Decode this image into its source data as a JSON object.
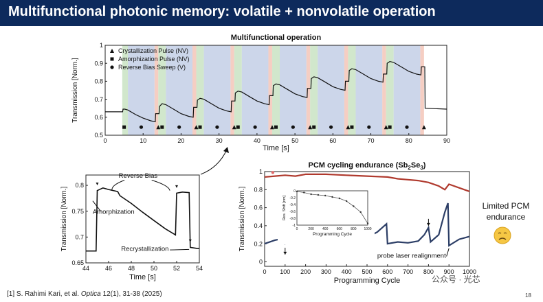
{
  "slide": {
    "title": "Multifunctional photonic memory: volatile + nonvolatile operation",
    "side_note": [
      "Limited PCM",
      "endurance"
    ],
    "side_icon": "sad-face-emoji",
    "citation_pre": "[1] S. Rahimi Kari, et al. ",
    "citation_journal": "Optica",
    "citation_post": " 12(1), 31-38 (2025)",
    "page_number": "18",
    "watermark": "公众号 · 光芯",
    "colors": {
      "title_bg": "#0d2a5c",
      "top_trace": "#b03a2e",
      "bottom_trace": "#2c3e66"
    }
  },
  "chart_data": [
    {
      "type": "line",
      "title": "Multifunctional operation",
      "xlabel": "Time [s]",
      "ylabel": "Transmission [Norm.]",
      "xlim": [
        0,
        90
      ],
      "ylim": [
        0.5,
        1.0
      ],
      "xticks": [
        "0",
        "10",
        "20",
        "30",
        "40",
        "50",
        "60",
        "70",
        "80",
        "90"
      ],
      "yticks": [
        "0.5",
        "0.6",
        "0.7",
        "0.8",
        "0.9",
        "1"
      ],
      "legend": [
        "Crystallization Pulse (NV)",
        "Amorphization Pulse (NV)",
        "Reverse Bias Sweep (V)"
      ],
      "legend_position": "top-left",
      "shaded_regions": [
        {
          "kind": "crystallization",
          "color": "#f3c6b8",
          "ranges": [
            [
              13,
              14
            ],
            [
              23,
              24
            ],
            [
              33,
              34
            ],
            [
              43,
              44
            ],
            [
              53,
              54
            ],
            [
              63,
              64
            ],
            [
              73,
              74
            ],
            [
              83,
              84
            ]
          ]
        },
        {
          "kind": "amorphization",
          "color": "#c9e3c3",
          "ranges": [
            [
              4.5,
              6
            ],
            [
              14,
              16
            ],
            [
              24,
              26
            ],
            [
              34,
              36
            ],
            [
              44,
              46
            ],
            [
              54,
              56
            ],
            [
              64,
              66
            ],
            [
              74,
              76
            ]
          ]
        },
        {
          "kind": "reverse-bias",
          "color": "#c3cfe6",
          "ranges": [
            [
              6,
              13
            ],
            [
              16,
              23
            ],
            [
              26,
              33
            ],
            [
              36,
              43
            ],
            [
              46,
              53
            ],
            [
              56,
              63
            ],
            [
              66,
              73
            ],
            [
              76,
              83
            ]
          ]
        }
      ],
      "markers": {
        "y": 0.545,
        "crystallization_x": [
          14,
          24,
          34,
          44,
          54,
          64,
          74,
          84
        ],
        "amorphization_x": [
          5,
          15,
          25,
          35,
          45,
          55,
          65,
          75
        ],
        "reverse_bias_x": [
          9.5,
          19.5,
          29.5,
          39.5,
          49.5,
          59.5,
          69.5,
          79.5
        ]
      },
      "series": [
        {
          "x": [
            0,
            4.6,
            4.7,
            5.2,
            6,
            8,
            10,
            12,
            13.2,
            13.3,
            14.2,
            14.3,
            15,
            16,
            18,
            20,
            22,
            23.2,
            23.3,
            24.2,
            24.3,
            25,
            26,
            28,
            30,
            32,
            33.2,
            33.3,
            34.2,
            34.3,
            35,
            36,
            38,
            40,
            42,
            43.2,
            43.3,
            44.2,
            44.3,
            45,
            46,
            48,
            50,
            52,
            53.2,
            53.3,
            54.2,
            54.3,
            55,
            56,
            58,
            60,
            62,
            63.2,
            63.3,
            64.2,
            64.3,
            65,
            66,
            68,
            70,
            72,
            73.2,
            73.3,
            74.2,
            74.3,
            75,
            76,
            78,
            80,
            82,
            83.2,
            83.3,
            84.2,
            84.3,
            90
          ],
          "y": [
            0.63,
            0.63,
            0.645,
            0.645,
            0.64,
            0.615,
            0.595,
            0.58,
            0.575,
            0.62,
            0.62,
            0.66,
            0.675,
            0.67,
            0.645,
            0.62,
            0.605,
            0.6,
            0.655,
            0.655,
            0.695,
            0.705,
            0.7,
            0.675,
            0.65,
            0.635,
            0.63,
            0.69,
            0.69,
            0.735,
            0.745,
            0.74,
            0.715,
            0.69,
            0.675,
            0.67,
            0.72,
            0.72,
            0.775,
            0.785,
            0.78,
            0.755,
            0.73,
            0.715,
            0.71,
            0.76,
            0.76,
            0.815,
            0.825,
            0.82,
            0.795,
            0.77,
            0.755,
            0.75,
            0.8,
            0.8,
            0.86,
            0.87,
            0.865,
            0.84,
            0.815,
            0.8,
            0.795,
            0.84,
            0.84,
            0.9,
            0.91,
            0.905,
            0.88,
            0.855,
            0.84,
            0.835,
            0.88,
            0.88,
            0.65,
            0.645
          ]
        }
      ]
    },
    {
      "type": "line",
      "title": "",
      "xlabel": "Time [s]",
      "ylabel": "Transmission [Norm.]",
      "xlim": [
        44,
        54
      ],
      "ylim": [
        0.65,
        0.82
      ],
      "xticks": [
        "44",
        "46",
        "48",
        "50",
        "52",
        "54"
      ],
      "yticks": [
        "0.65",
        "0.7",
        "0.75",
        "0.8"
      ],
      "annotations": [
        "Reverse Bias",
        "Amorphization",
        "Recrystallization"
      ],
      "series": [
        {
          "x": [
            44,
            44.9,
            45,
            45.5,
            46,
            46.8,
            47,
            48,
            49,
            50,
            51,
            51.9,
            52,
            52.5,
            53.1,
            53.2,
            53.8,
            54
          ],
          "y": [
            0.673,
            0.673,
            0.79,
            0.795,
            0.792,
            0.788,
            0.78,
            0.765,
            0.748,
            0.732,
            0.716,
            0.704,
            0.785,
            0.787,
            0.786,
            0.68,
            0.678,
            0.678
          ]
        }
      ]
    },
    {
      "type": "line",
      "title": "PCM cycling endurance (Sb2Se3)",
      "title_parts": [
        "PCM cycling endurance (Sb",
        "2",
        "Se",
        "3",
        ")"
      ],
      "xlabel": "Programming Cycle",
      "ylabel": "Transmission [Norm.]",
      "xlim": [
        0,
        1000
      ],
      "ylim": [
        -0.05,
        1.0
      ],
      "xticks": [
        "0",
        "100",
        "200",
        "300",
        "400",
        "500",
        "600",
        "700",
        "800",
        "900",
        "1000"
      ],
      "yticks": [
        "0",
        "0.2",
        "0.4",
        "0.6",
        "0.8",
        "1"
      ],
      "annotations": [
        "probe laser realignment"
      ],
      "arrows_x": [
        100,
        800
      ],
      "series": [
        {
          "name": "",
          "color": "#b03a2e",
          "x": [
            0,
            50,
            100,
            150,
            200,
            300,
            400,
            500,
            600,
            650,
            700,
            750,
            800,
            850,
            880,
            900,
            950,
            1000
          ],
          "y": [
            0.94,
            0.95,
            0.96,
            0.95,
            0.97,
            0.97,
            0.96,
            0.95,
            0.94,
            0.92,
            0.91,
            0.9,
            0.88,
            0.84,
            0.8,
            0.86,
            0.82,
            0.78
          ]
        },
        {
          "name": "",
          "color": "#2c3e66",
          "x": [
            0,
            50,
            95,
            100,
            150,
            200,
            300,
            400,
            500,
            550,
            595,
            600,
            650,
            700,
            750,
            780,
            800,
            810,
            850,
            880,
            895,
            900,
            950,
            1000
          ],
          "y": [
            0.2,
            0.24,
            0.26,
            0.2,
            0.24,
            0.26,
            0.27,
            0.26,
            0.27,
            0.33,
            0.42,
            0.2,
            0.22,
            0.21,
            0.23,
            0.3,
            0.38,
            0.22,
            0.3,
            0.55,
            0.65,
            0.18,
            0.25,
            0.28
          ]
        }
      ]
    },
    {
      "type": "line",
      "title": "",
      "xlabel": "Programming Cycle",
      "ylabel": "Res. Shift [nm]",
      "xlim": [
        0,
        1000
      ],
      "ylim": [
        -1,
        0
      ],
      "xticks": [
        "0",
        "100",
        "200",
        "300",
        "400",
        "500",
        "600",
        "700",
        "800",
        "900",
        "1000"
      ],
      "yticks": [
        "0",
        "-0.2",
        "-0.4",
        "-0.6",
        "-0.8",
        "-1"
      ],
      "series": [
        {
          "name": "",
          "x": [
            0,
            100,
            200,
            300,
            400,
            500,
            600,
            700,
            800,
            900,
            1000
          ],
          "y": [
            -0.02,
            -0.05,
            -0.1,
            -0.12,
            -0.14,
            -0.18,
            -0.22,
            -0.3,
            -0.45,
            -0.62,
            -0.95
          ]
        }
      ]
    }
  ]
}
